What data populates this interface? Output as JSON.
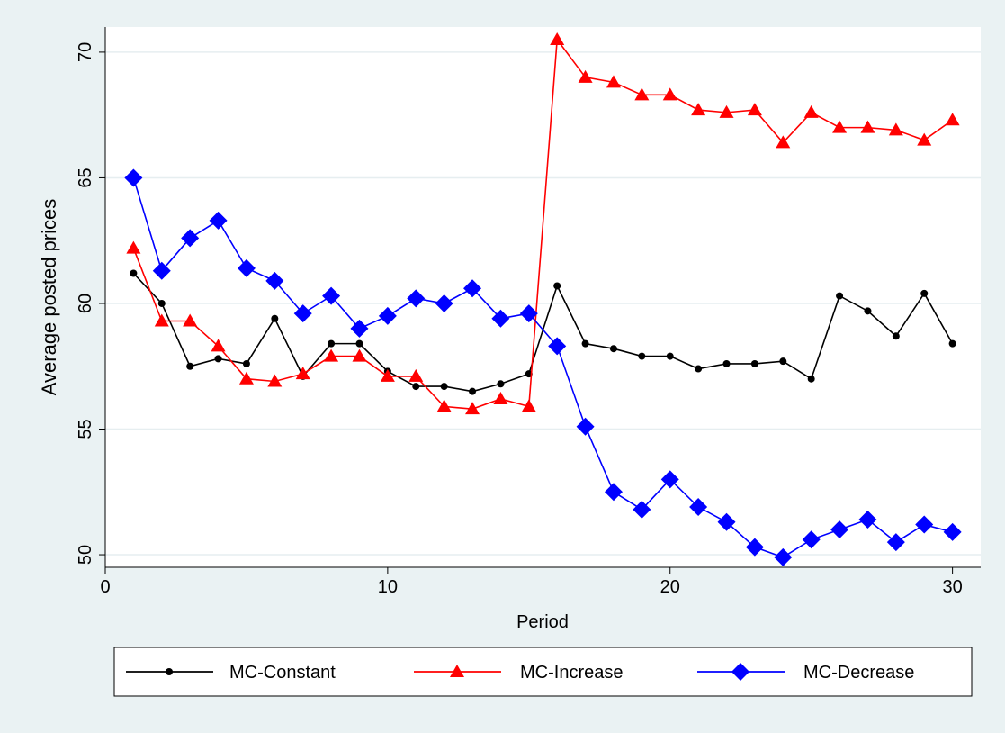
{
  "chart_data": {
    "type": "line",
    "title": "",
    "xlabel": "Period",
    "ylabel": "Average posted prices",
    "xlim": [
      0,
      31
    ],
    "ylim": [
      49.5,
      71
    ],
    "xticks": [
      0,
      10,
      20,
      30
    ],
    "yticks": [
      50,
      55,
      60,
      65,
      70
    ],
    "grid": true,
    "legend_position": "bottom",
    "x": [
      1,
      2,
      3,
      4,
      5,
      6,
      7,
      8,
      9,
      10,
      11,
      12,
      13,
      14,
      15,
      16,
      17,
      18,
      19,
      20,
      21,
      22,
      23,
      24,
      25,
      26,
      27,
      28,
      29,
      30
    ],
    "series": [
      {
        "name": "MC-Constant",
        "color": "#000000",
        "marker": "circle",
        "values": [
          61.2,
          60.0,
          57.5,
          57.8,
          57.6,
          59.4,
          57.1,
          58.4,
          58.4,
          57.3,
          56.7,
          56.7,
          56.5,
          56.8,
          57.2,
          60.7,
          58.4,
          58.2,
          57.9,
          57.9,
          57.4,
          57.6,
          57.6,
          57.7,
          57.0,
          60.3,
          59.7,
          58.7,
          60.4,
          58.4
        ]
      },
      {
        "name": "MC-Increase",
        "color": "#ff0000",
        "marker": "triangle",
        "values": [
          62.2,
          59.3,
          59.3,
          58.3,
          57.0,
          56.9,
          57.2,
          57.9,
          57.9,
          57.1,
          57.1,
          55.9,
          55.8,
          56.2,
          55.9,
          70.5,
          69.0,
          68.8,
          68.3,
          68.3,
          67.7,
          67.6,
          67.7,
          66.4,
          67.6,
          67.0,
          67.0,
          66.9,
          66.5,
          67.3
        ]
      },
      {
        "name": "MC-Decrease",
        "color": "#0000ff",
        "marker": "diamond",
        "values": [
          65.0,
          61.3,
          62.6,
          63.3,
          61.4,
          60.9,
          59.6,
          60.3,
          59.0,
          59.5,
          60.2,
          60.0,
          60.6,
          59.4,
          59.6,
          58.3,
          55.1,
          52.5,
          51.8,
          53.0,
          51.9,
          51.3,
          50.3,
          49.9,
          50.6,
          51.0,
          51.4,
          50.5,
          51.2,
          50.9
        ]
      }
    ]
  }
}
